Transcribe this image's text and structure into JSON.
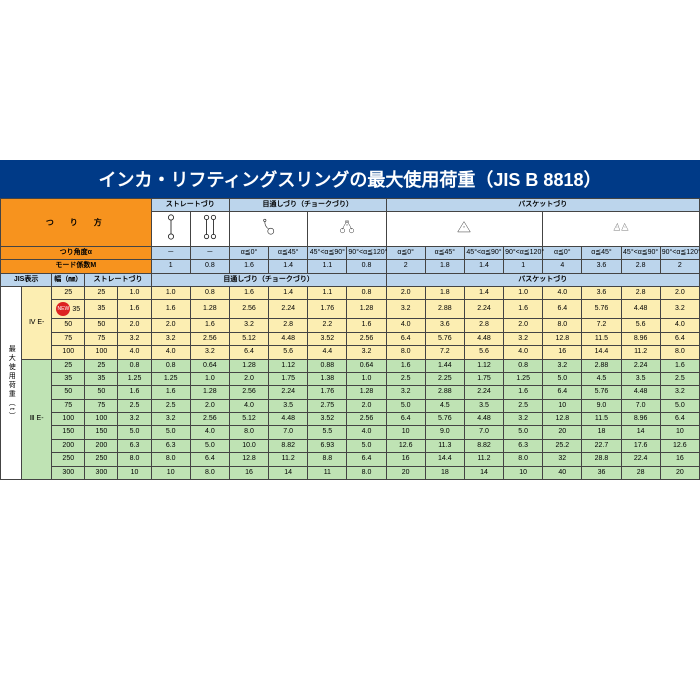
{
  "title": "インカ・リフティングスリングの最大使用荷重（JIS B 8818）",
  "method_label": "つ　り　方",
  "section_headers": {
    "straight": "ストレートづり",
    "choke": "目通しづり（チョークづり）",
    "basket": "バスケットづり"
  },
  "angle_row_label": "つり角度α",
  "angle_vals": [
    "－",
    "－",
    "α≦0°",
    "α≦45°",
    "45°<α≦90°",
    "90°<α≦120°",
    "α≦0°",
    "α≦45°",
    "45°<α≦90°",
    "90°<α≦120°",
    "α≦0°",
    "α≦45°",
    "45°<α≦90°",
    "90°<α≦120°"
  ],
  "mode_row_label": "モード係数M",
  "mode_vals": [
    "1",
    "0.8",
    "1.6",
    "1.4",
    "1.1",
    "0.8",
    "2",
    "1.8",
    "1.4",
    "1",
    "4",
    "3.6",
    "2.8",
    "2"
  ],
  "jis_label": "JIS表示",
  "width_label": "幅（㎜）",
  "side_label_main": "最大使用荷重（t）",
  "group1_code": "Ⅳ E-",
  "group2_code": "Ⅲ E-",
  "colors": {
    "title_bg": "#003a87",
    "orange": "#f7931e",
    "blue": "#bcd5ec",
    "yellow": "#fceeb2",
    "green": "#bfe3b4"
  },
  "new_badge": "NEW",
  "rows_g1": [
    {
      "new": false,
      "jis": "25",
      "w": "25",
      "st": "1.0",
      "d": [
        "1.0",
        "0.8",
        "1.6",
        "1.4",
        "1.1",
        "0.8",
        "2.0",
        "1.8",
        "1.4",
        "1.0",
        "4.0",
        "3.6",
        "2.8",
        "2.0"
      ]
    },
    {
      "new": true,
      "jis": "35",
      "w": "35",
      "st": "1.6",
      "d": [
        "1.6",
        "1.28",
        "2.56",
        "2.24",
        "1.76",
        "1.28",
        "3.2",
        "2.88",
        "2.24",
        "1.6",
        "6.4",
        "5.76",
        "4.48",
        "3.2"
      ]
    },
    {
      "new": false,
      "jis": "50",
      "w": "50",
      "st": "2.0",
      "d": [
        "2.0",
        "1.6",
        "3.2",
        "2.8",
        "2.2",
        "1.6",
        "4.0",
        "3.6",
        "2.8",
        "2.0",
        "8.0",
        "7.2",
        "5.6",
        "4.0"
      ]
    },
    {
      "new": false,
      "jis": "75",
      "w": "75",
      "st": "3.2",
      "d": [
        "3.2",
        "2.56",
        "5.12",
        "4.48",
        "3.52",
        "2.56",
        "6.4",
        "5.76",
        "4.48",
        "3.2",
        "12.8",
        "11.5",
        "8.96",
        "6.4"
      ]
    },
    {
      "new": false,
      "jis": "100",
      "w": "100",
      "st": "4.0",
      "d": [
        "4.0",
        "3.2",
        "6.4",
        "5.6",
        "4.4",
        "3.2",
        "8.0",
        "7.2",
        "5.6",
        "4.0",
        "16",
        "14.4",
        "11.2",
        "8.0"
      ]
    }
  ],
  "rows_g2": [
    {
      "jis": "25",
      "w": "25",
      "st": "0.8",
      "d": [
        "0.8",
        "0.64",
        "1.28",
        "1.12",
        "0.88",
        "0.64",
        "1.6",
        "1.44",
        "1.12",
        "0.8",
        "3.2",
        "2.88",
        "2.24",
        "1.6"
      ]
    },
    {
      "jis": "35",
      "w": "35",
      "st": "1.25",
      "d": [
        "1.25",
        "1.0",
        "2.0",
        "1.75",
        "1.38",
        "1.0",
        "2.5",
        "2.25",
        "1.75",
        "1.25",
        "5.0",
        "4.5",
        "3.5",
        "2.5"
      ]
    },
    {
      "jis": "50",
      "w": "50",
      "st": "1.6",
      "d": [
        "1.6",
        "1.28",
        "2.56",
        "2.24",
        "1.76",
        "1.28",
        "3.2",
        "2.88",
        "2.24",
        "1.6",
        "6.4",
        "5.76",
        "4.48",
        "3.2"
      ]
    },
    {
      "jis": "75",
      "w": "75",
      "st": "2.5",
      "d": [
        "2.5",
        "2.0",
        "4.0",
        "3.5",
        "2.75",
        "2.0",
        "5.0",
        "4.5",
        "3.5",
        "2.5",
        "10",
        "9.0",
        "7.0",
        "5.0"
      ]
    },
    {
      "jis": "100",
      "w": "100",
      "st": "3.2",
      "d": [
        "3.2",
        "2.56",
        "5.12",
        "4.48",
        "3.52",
        "2.56",
        "6.4",
        "5.76",
        "4.48",
        "3.2",
        "12.8",
        "11.5",
        "8.96",
        "6.4"
      ]
    },
    {
      "jis": "150",
      "w": "150",
      "st": "5.0",
      "d": [
        "5.0",
        "4.0",
        "8.0",
        "7.0",
        "5.5",
        "4.0",
        "10",
        "9.0",
        "7.0",
        "5.0",
        "20",
        "18",
        "14",
        "10"
      ]
    },
    {
      "jis": "200",
      "w": "200",
      "st": "6.3",
      "d": [
        "6.3",
        "5.0",
        "10.0",
        "8.82",
        "6.93",
        "5.0",
        "12.6",
        "11.3",
        "8.82",
        "6.3",
        "25.2",
        "22.7",
        "17.6",
        "12.6"
      ]
    },
    {
      "jis": "250",
      "w": "250",
      "st": "8.0",
      "d": [
        "8.0",
        "6.4",
        "12.8",
        "11.2",
        "8.8",
        "6.4",
        "16",
        "14.4",
        "11.2",
        "8.0",
        "32",
        "28.8",
        "22.4",
        "16"
      ]
    },
    {
      "jis": "300",
      "w": "300",
      "st": "10",
      "d": [
        "10",
        "8.0",
        "16",
        "14",
        "11",
        "8.0",
        "20",
        "18",
        "14",
        "10",
        "40",
        "36",
        "28",
        "20"
      ]
    }
  ]
}
